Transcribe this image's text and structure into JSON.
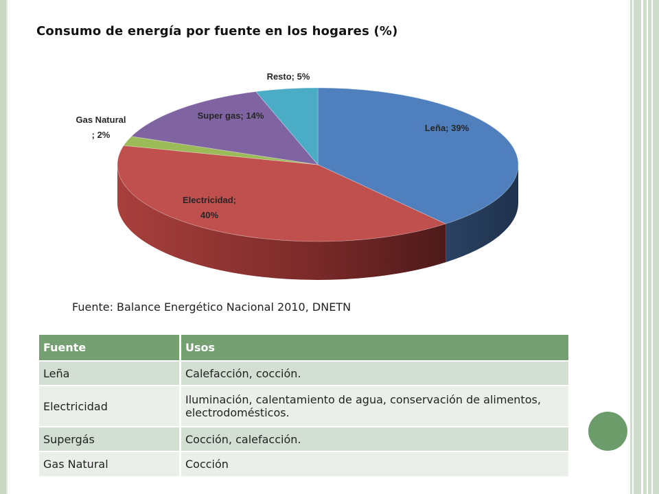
{
  "title": "Consumo de energía por fuente en los hogares (%)",
  "source": "Fuente: Balance Energético Nacional 2010, DNETN",
  "chart_data": {
    "type": "pie",
    "title": "Consumo de energía por fuente en los hogares (%)",
    "three_d": true,
    "slices": [
      {
        "label": "Leña; 39%",
        "value": 39,
        "color": "#4f7fbd",
        "side_color": "#263c5c"
      },
      {
        "label": "Electricidad;",
        "label2": "40%",
        "value": 40,
        "color": "#c0504d",
        "side_color": "#8a3331"
      },
      {
        "label": "Gas Natural",
        "label2": "; 2%",
        "value": 2,
        "color": "#9bbb59",
        "side_color": "#6b823b"
      },
      {
        "label": "Super gas; 14%",
        "value": 14,
        "color": "#8064a2",
        "side_color": "#5a466f"
      },
      {
        "label": "Resto; 5%",
        "value": 5,
        "color": "#4bacc6",
        "side_color": "#2f7283"
      }
    ]
  },
  "table": {
    "headers": [
      "Fuente",
      "Usos"
    ],
    "rows": [
      [
        "Leña",
        "Calefacción, cocción."
      ],
      [
        "Electricidad",
        "Iluminación, calentamiento de agua, conservación de alimentos, electrodomésticos."
      ],
      [
        "Supergás",
        "Cocción, calefacción."
      ],
      [
        "Gas Natural",
        "Cocción"
      ]
    ]
  }
}
